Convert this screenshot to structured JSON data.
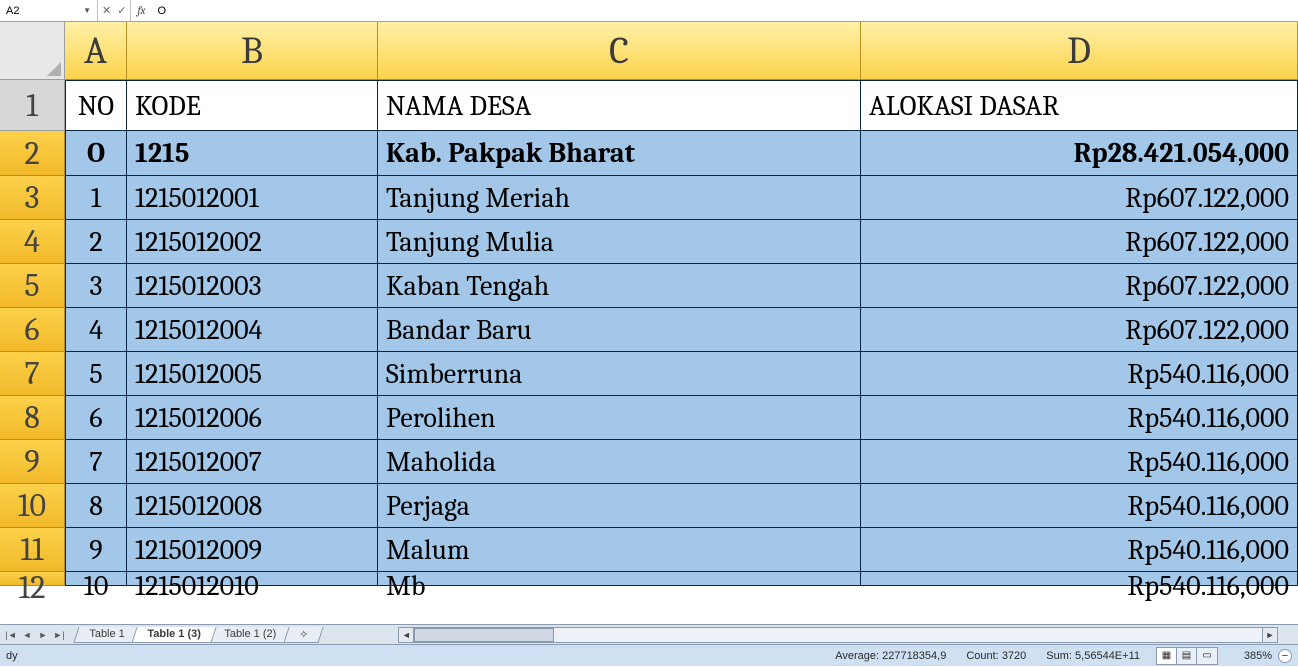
{
  "formulaBar": {
    "nameBox": "A2",
    "fx": "fx",
    "formula": "O"
  },
  "columns": [
    "A",
    "B",
    "C",
    "D"
  ],
  "headerRow": {
    "rownum": "1",
    "A": "NO",
    "B": "KODE",
    "C": "NAMA DESA",
    "D": "ALOKASI DASAR"
  },
  "rows": [
    {
      "rownum": "2",
      "bold": true,
      "A": "O",
      "B": "1215",
      "C": "Kab. Pakpak Bharat",
      "D": "Rp28.421.054,000"
    },
    {
      "rownum": "3",
      "A": "1",
      "B": "1215012001",
      "C": "Tanjung Meriah",
      "D": "Rp607.122,000"
    },
    {
      "rownum": "4",
      "A": "2",
      "B": "1215012002",
      "C": "Tanjung Mulia",
      "D": "Rp607.122,000"
    },
    {
      "rownum": "5",
      "A": "3",
      "B": "1215012003",
      "C": "Kaban Tengah",
      "D": "Rp607.122,000"
    },
    {
      "rownum": "6",
      "A": "4",
      "B": "1215012004",
      "C": "Bandar Baru",
      "D": "Rp607.122,000"
    },
    {
      "rownum": "7",
      "A": "5",
      "B": "1215012005",
      "C": "Simberruna",
      "D": "Rp540.116,000"
    },
    {
      "rownum": "8",
      "A": "6",
      "B": "1215012006",
      "C": "Perolihen",
      "D": "Rp540.116,000"
    },
    {
      "rownum": "9",
      "A": "7",
      "B": "1215012007",
      "C": "Maholida",
      "D": "Rp540.116,000"
    },
    {
      "rownum": "10",
      "A": "8",
      "B": "1215012008",
      "C": "Perjaga",
      "D": "Rp540.116,000"
    },
    {
      "rownum": "11",
      "A": "9",
      "B": "1215012009",
      "C": "Malum",
      "D": "Rp540.116,000"
    }
  ],
  "cutRow": {
    "rownum": "12",
    "A": "10",
    "B": "1215012010",
    "C": "Mb",
    "D": "Rp540.116,000"
  },
  "tabs": {
    "items": [
      {
        "label": "Table 1",
        "active": false
      },
      {
        "label": "Table 1 (3)",
        "active": true
      },
      {
        "label": "Table 1 (2)",
        "active": false
      }
    ]
  },
  "status": {
    "mode": "dy",
    "avgLabel": "Average:",
    "avg": "227718354,9",
    "countLabel": "Count:",
    "count": "3720",
    "sumLabel": "Sum:",
    "sum": "5,56544E+11",
    "zoom": "385%"
  },
  "style": {
    "colHeaderBgTop": "#fff1a8",
    "colHeaderBgBottom": "#fcd24a",
    "rowHeaderBg": "#d7d7d7",
    "selectedRowHeaderBg": "#f2b92a",
    "dataCellBg": "#a3c7e8",
    "gridBorder": "#0a2540",
    "fontSizeHeader": 38,
    "fontSizeCell": 28,
    "fontSizeRowNum": 32,
    "colWidths": {
      "gutter": 65,
      "A": 62,
      "B": 251,
      "C": 483,
      "D": 437
    },
    "rowHeaderHeight": 58,
    "dataRowHeight": 44
  }
}
